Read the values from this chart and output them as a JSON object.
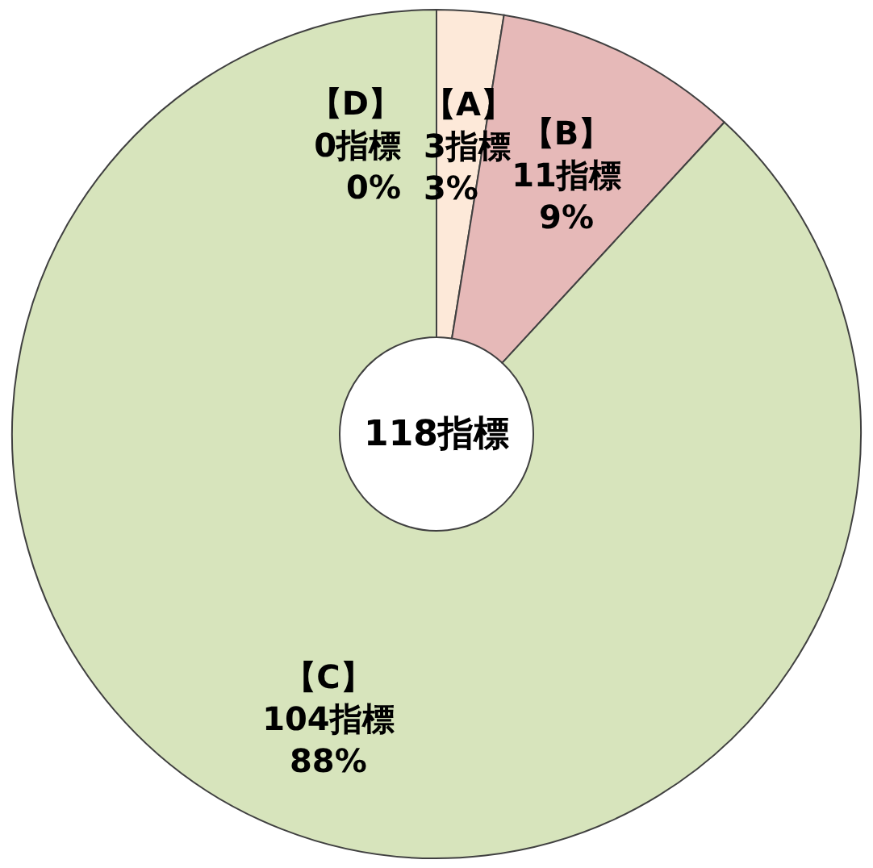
{
  "chart_data": {
    "type": "donut",
    "categories": [
      "【A】",
      "【B】",
      "【C】",
      "【D】"
    ],
    "values": [
      3,
      11,
      104,
      0
    ],
    "colors": [
      "#fde9d9",
      "#e6b9b8",
      "#d7e4bc",
      "#c6d9f1"
    ],
    "value_labels": [
      "3指標\n3%",
      "11指標\n9%",
      "104指標\n88%",
      "0指標\n0%"
    ],
    "annotations": [
      "118指標"
    ]
  }
}
